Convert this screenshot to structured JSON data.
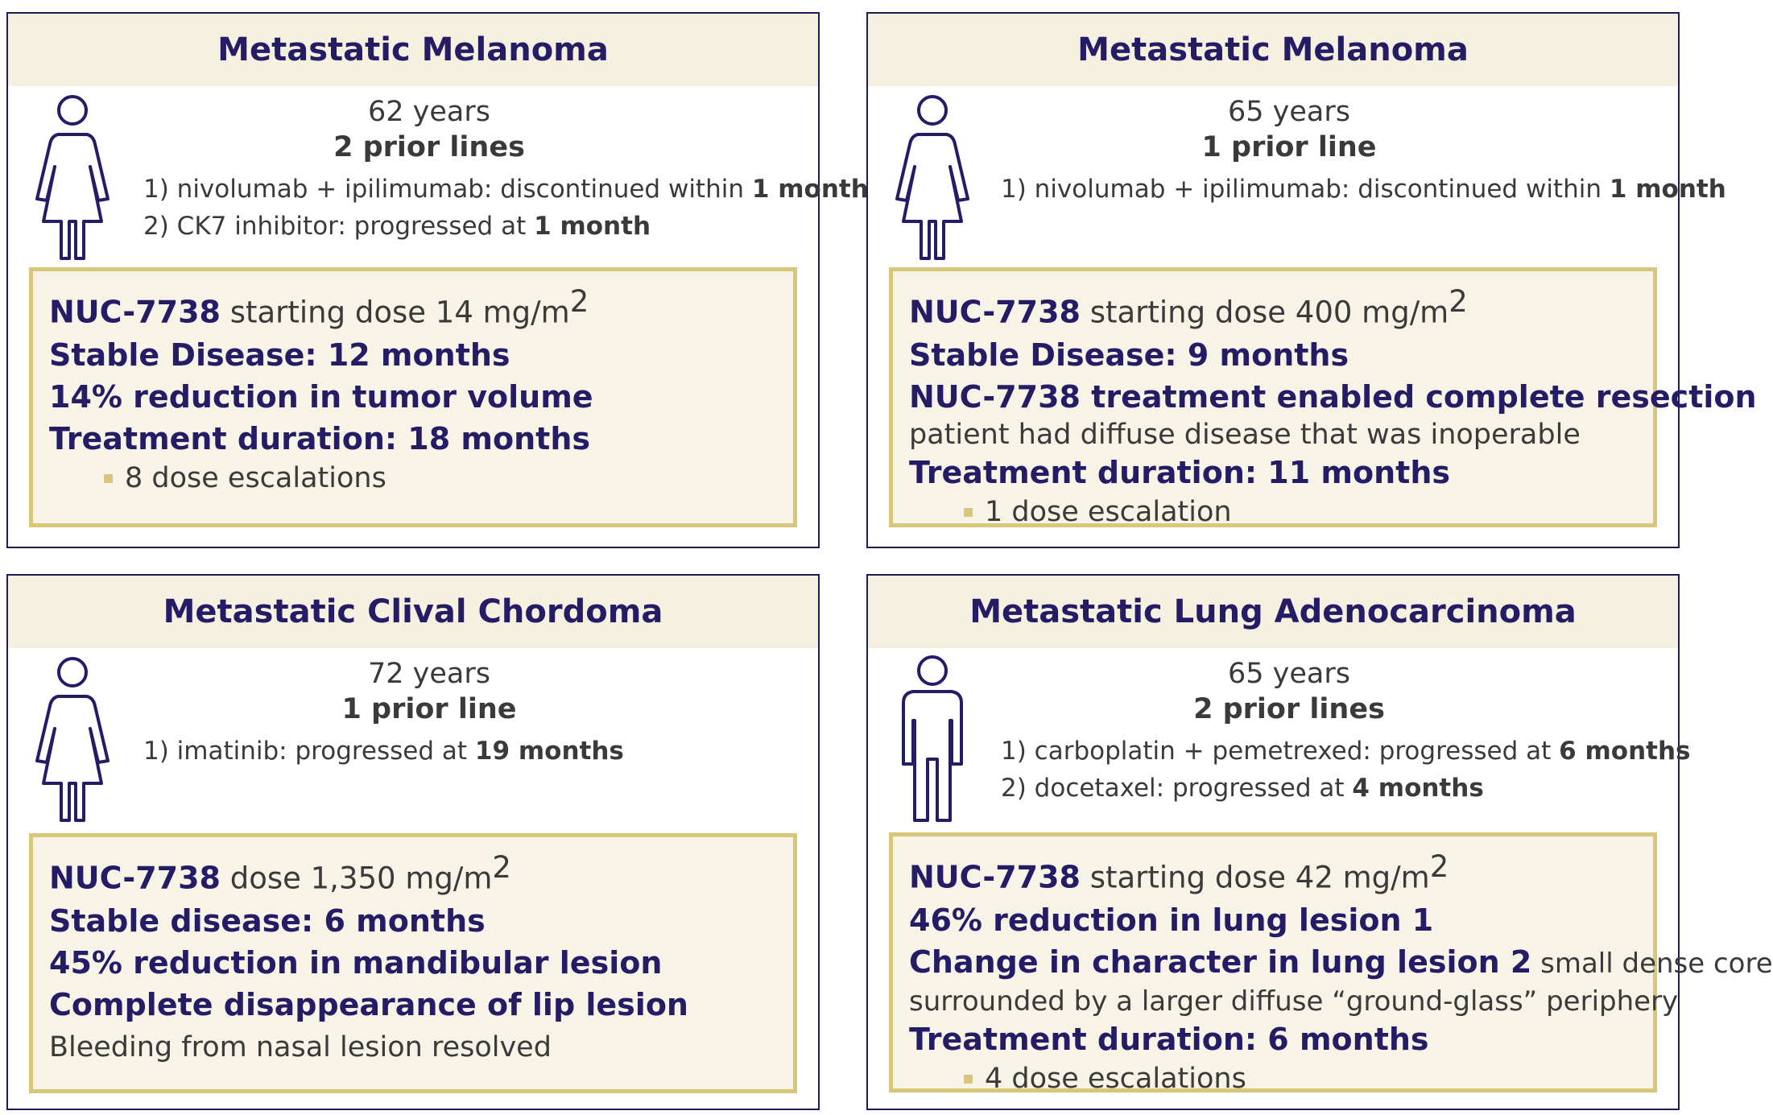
{
  "cards": [
    {
      "title": "Metastatic Melanoma",
      "age": "62 years",
      "prior_lines": "2 prior lines",
      "priors": [
        {
          "pre": "1) nivolumab + ipilimumab: discontinued within ",
          "bold": "1 month"
        },
        {
          "pre": "2) CK7 inhibitor: progressed at ",
          "bold": "1 month"
        }
      ],
      "drug": "NUC-7738",
      "dose_text": " starting dose 14 mg/m",
      "dose_sup": "2",
      "results": [
        "Stable Disease: 12 months",
        "14% reduction in tumor volume"
      ],
      "duration": "Treatment duration: 18 months",
      "escalations": "8 dose escalations"
    },
    {
      "title": "Metastatic Melanoma",
      "age": "65 years",
      "prior_lines": "1 prior line",
      "priors": [
        {
          "pre": "1)  nivolumab + ipilimumab: discontinued within ",
          "bold": "1 month"
        }
      ],
      "drug": "NUC-7738",
      "dose_text": " starting dose 400 mg/m",
      "dose_sup": "2",
      "results": [
        "Stable Disease: 9 months",
        "NUC-7738 treatment enabled complete resection"
      ],
      "result_note": "patient had diffuse disease that was inoperable",
      "duration": "Treatment duration: 11 months",
      "escalations": "1 dose escalation"
    },
    {
      "title": "Metastatic Clival Chordoma",
      "age": "72 years",
      "prior_lines": "1 prior line",
      "priors": [
        {
          "pre": "1)  imatinib: progressed at ",
          "bold": "19 months"
        }
      ],
      "drug": "NUC-7738",
      "dose_text": " dose 1,350 mg/m",
      "dose_sup": "2",
      "results": [
        "Stable disease: 6 months",
        "45% reduction in mandibular lesion",
        "Complete disappearance of lip lesion"
      ],
      "note": "Bleeding from nasal lesion resolved"
    },
    {
      "title": "Metastatic Lung Adenocarcinoma",
      "age": "65 years",
      "prior_lines": "2 prior lines",
      "priors": [
        {
          "pre": "1) carboplatin + pemetrexed: progressed at ",
          "bold": "6 months"
        },
        {
          "pre": "2) docetaxel: progressed at ",
          "bold": "4 months"
        }
      ],
      "drug": "NUC-7738",
      "dose_text": " starting dose 42 mg/m",
      "dose_sup": "2",
      "results": [
        "46% reduction in lung lesion 1"
      ],
      "change_bold": "Change in character in lung lesion 2",
      "change_light": " small dense core",
      "change_note": "surrounded by a larger diffuse “ground-glass” periphery",
      "duration": "Treatment duration: 6 months",
      "escalations": "4 dose escalations"
    }
  ],
  "colors": {
    "navy": "#251c66",
    "header_bg": "#f5f0df",
    "gold": "#d8c67a",
    "box_bg": "#f7f3e6"
  },
  "icons": [
    "female-figure-icon",
    "male-figure-icon"
  ]
}
